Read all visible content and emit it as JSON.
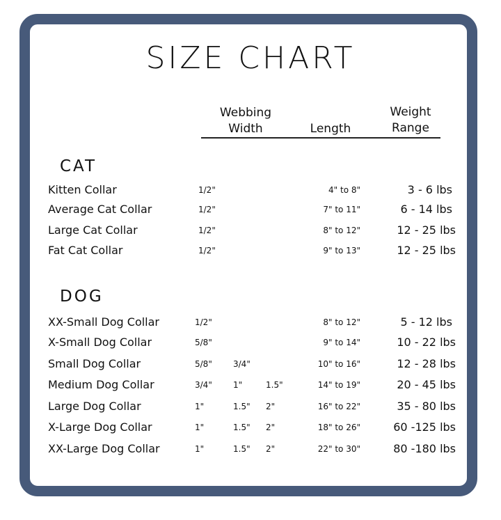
{
  "title": "SIZE CHART",
  "headers": {
    "webbing_width": [
      "Webbing",
      "Width"
    ],
    "length": "Length",
    "weight_range": [
      "Weight",
      "Range"
    ]
  },
  "colors": {
    "frame": "#475a7a"
  },
  "sections": [
    {
      "label": "CAT",
      "rows": [
        {
          "name": "Kitten Collar",
          "widths": [
            "1/2\""
          ],
          "length": "4\" to 8\"",
          "weight": "3 - 6 lbs"
        },
        {
          "name": "Average Cat Collar",
          "widths": [
            "1/2\""
          ],
          "length": "7\" to 11\"",
          "weight": "6 - 14 lbs"
        },
        {
          "name": "Large Cat Collar",
          "widths": [
            "1/2\""
          ],
          "length": "8\" to 12\"",
          "weight": "12 - 25 lbs"
        },
        {
          "name": "Fat Cat Collar",
          "widths": [
            "1/2\""
          ],
          "length": "9\" to 13\"",
          "weight": "12 - 25 lbs"
        }
      ]
    },
    {
      "label": "DOG",
      "rows": [
        {
          "name": "XX-Small Dog Collar",
          "widths": [
            "1/2\""
          ],
          "length": "8\" to 12\"",
          "weight": "5 - 12 lbs"
        },
        {
          "name": "X-Small Dog Collar",
          "widths": [
            "5/8\""
          ],
          "length": "9\" to 14\"",
          "weight": "10 - 22 lbs"
        },
        {
          "name": "Small Dog Collar",
          "widths": [
            "5/8\"",
            "3/4\""
          ],
          "length": "10\" to 16\"",
          "weight": "12 - 28 lbs"
        },
        {
          "name": "Medium Dog Collar",
          "widths": [
            "3/4\"",
            "1\"",
            "1.5\""
          ],
          "length": "14\" to 19\"",
          "weight": "20 - 45 lbs"
        },
        {
          "name": "Large Dog Collar",
          "widths": [
            "1\"",
            "1.5\"",
            "2\""
          ],
          "length": "16\" to 22\"",
          "weight": "35 - 80 lbs"
        },
        {
          "name": "X-Large Dog Collar",
          "widths": [
            "1\"",
            "1.5\"",
            "2\""
          ],
          "length": "18\" to 26\"",
          "weight": "60 -125 lbs"
        },
        {
          "name": "XX-Large Dog Collar",
          "widths": [
            "1\"",
            "1.5\"",
            "2\""
          ],
          "length": "22\" to 30\"",
          "weight": "80 -180 lbs"
        }
      ]
    }
  ]
}
